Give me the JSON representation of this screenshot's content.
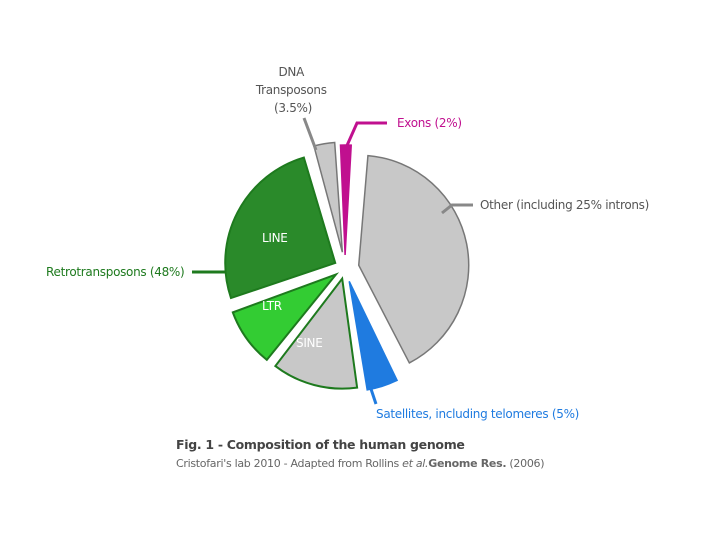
{
  "chart_data": {
    "type": "pie",
    "unit": "%",
    "slices": [
      {
        "label": "Other (including 25% introns)",
        "value": 41.5,
        "color": "#c8c8c8",
        "text_color": "#555555"
      },
      {
        "label": "Satellites, including telomeres (5%)",
        "value": 5,
        "color": "#1f7be0",
        "text_color": "#1f7be0"
      },
      {
        "label": "SINE",
        "value": 13,
        "color": "#c8c8c8",
        "parent": "Retrotransposons (48%)"
      },
      {
        "label": "LTR",
        "value": 9,
        "color": "#33cc33",
        "parent": "Retrotransposons (48%)"
      },
      {
        "label": "LINE",
        "value": 26,
        "color": "#2a8a2a",
        "parent": "Retrotransposons (48%)"
      },
      {
        "label": "DNA Transposons (3.5%)",
        "value": 3.5,
        "color": "#c8c8c8",
        "text_color": "#555555"
      },
      {
        "label": "Exons (2%)",
        "value": 2,
        "color": "#c0108f",
        "text_color": "#c0108f"
      }
    ],
    "group_label": {
      "text": "Retrotransposons (48%)",
      "color": "#1e7a1e"
    },
    "inner_labels": {
      "line": "LINE",
      "ltr": "LTR",
      "sine": "SINE"
    },
    "dna_label_lines": [
      "DNA",
      "Transposons",
      "(3.5%)"
    ],
    "caption": {
      "title": "Fig. 1 - Composition of the human genome",
      "subtitle_prefix": "Cristofari's lab 2010 - Adapted from Rollins ",
      "subtitle_et_al": "et al.",
      "subtitle_journal": "Genome Res.",
      "subtitle_year": " (2006)"
    }
  }
}
